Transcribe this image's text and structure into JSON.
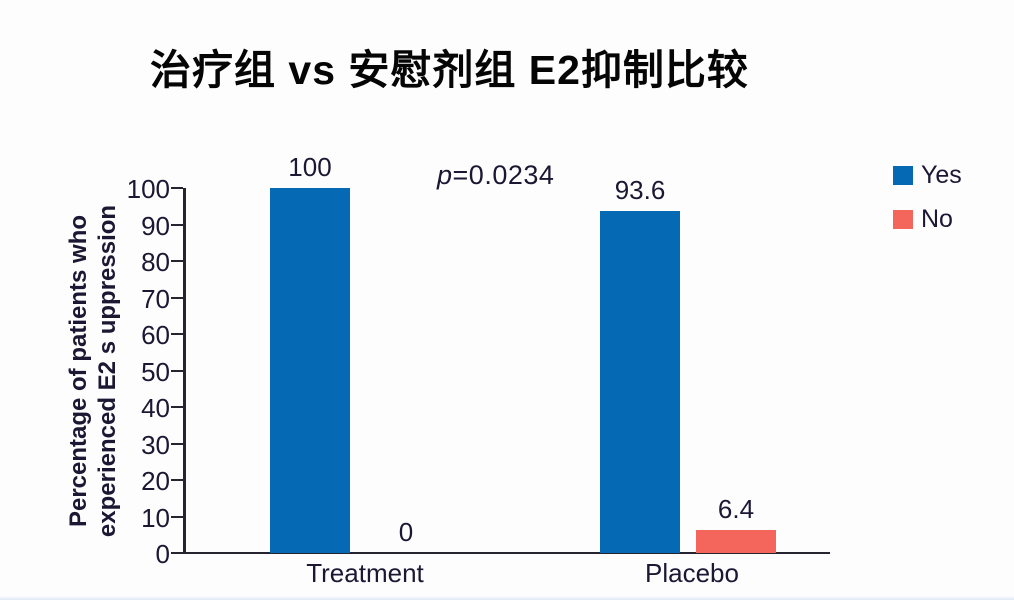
{
  "chart": {
    "title": "治疗组 vs 安慰剂组 E2抑制比较",
    "p_symbol": "p",
    "p_value_text": "=0.0234",
    "y_axis_title_line1": "Percentage of patients who",
    "y_axis_title_line2": "experienced E2 s uppression"
  },
  "chart_data": {
    "type": "bar",
    "title": "治疗组 vs 安慰剂组 E2抑制比较",
    "categories": [
      "Treatment",
      "Placebo"
    ],
    "series": [
      {
        "name": "Yes",
        "color": "#0569b4",
        "values": [
          100,
          93.6
        ],
        "value_labels": [
          "100",
          "93.6"
        ]
      },
      {
        "name": "No",
        "color": "#f4655c",
        "values": [
          0,
          6.4
        ],
        "value_labels": [
          "0",
          "6.4"
        ]
      }
    ],
    "annotation": "p=0.0234",
    "xlabel": "",
    "ylabel": "Percentage of patients who experienced E2 s uppression",
    "ylim": [
      0,
      100
    ],
    "yticks": [
      0,
      10,
      20,
      30,
      40,
      50,
      60,
      70,
      80,
      90,
      100
    ],
    "grid": false,
    "legend_position": "top-right"
  }
}
